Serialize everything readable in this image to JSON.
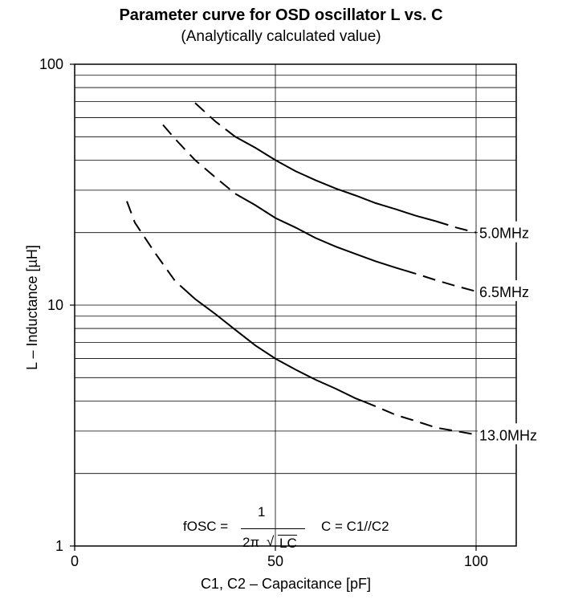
{
  "chart_data": {
    "type": "line",
    "title": "Parameter curve for OSD oscillator L vs. C",
    "subtitle": "(Analytically calculated value)",
    "xlabel": "C1, C2 – Capacitance [pF]",
    "ylabel": "L – Inductance [µH]",
    "xlim": [
      0,
      110
    ],
    "ylim": [
      1,
      100
    ],
    "yscale": "log",
    "grid": true,
    "x_ticks": [
      0,
      50,
      100
    ],
    "x_tick_labels": [
      "0",
      "50",
      "100"
    ],
    "y_ticks": [
      1,
      10,
      100
    ],
    "y_tick_labels": [
      "1",
      "10",
      "100"
    ],
    "series": [
      {
        "name": "5.0MHz",
        "points": [
          [
            30,
            69
          ],
          [
            35,
            58
          ],
          [
            40,
            50
          ],
          [
            45,
            45
          ],
          [
            50,
            40
          ],
          [
            55,
            36
          ],
          [
            60,
            33
          ],
          [
            65,
            30.5
          ],
          [
            70,
            28.5
          ],
          [
            75,
            26.5
          ],
          [
            80,
            25
          ],
          [
            85,
            23.5
          ],
          [
            90,
            22.3
          ],
          [
            95,
            21
          ],
          [
            100,
            20
          ]
        ],
        "solid_range": [
          38,
          90
        ]
      },
      {
        "name": "6.5MHz",
        "points": [
          [
            22,
            56
          ],
          [
            25,
            49
          ],
          [
            30,
            40
          ],
          [
            35,
            34
          ],
          [
            40,
            29
          ],
          [
            45,
            26
          ],
          [
            50,
            23
          ],
          [
            55,
            21
          ],
          [
            60,
            19
          ],
          [
            65,
            17.5
          ],
          [
            70,
            16.3
          ],
          [
            75,
            15.2
          ],
          [
            80,
            14.3
          ],
          [
            85,
            13.5
          ],
          [
            90,
            12.7
          ],
          [
            95,
            12
          ],
          [
            100,
            11.4
          ]
        ],
        "solid_range": [
          40,
          82
        ]
      },
      {
        "name": "13.0MHz",
        "points": [
          [
            13,
            27
          ],
          [
            15,
            22
          ],
          [
            20,
            16.5
          ],
          [
            25,
            12.6
          ],
          [
            30,
            10.6
          ],
          [
            35,
            9.2
          ],
          [
            40,
            7.9
          ],
          [
            45,
            6.8
          ],
          [
            50,
            6
          ],
          [
            55,
            5.4
          ],
          [
            60,
            4.9
          ],
          [
            65,
            4.5
          ],
          [
            70,
            4.1
          ],
          [
            75,
            3.8
          ],
          [
            80,
            3.5
          ],
          [
            85,
            3.3
          ],
          [
            90,
            3.1
          ],
          [
            95,
            3
          ],
          [
            100,
            2.9
          ]
        ],
        "solid_range": [
          27,
          72
        ]
      }
    ],
    "annotations": {
      "formula": {
        "lhs": "fOSC =",
        "numerator": "1",
        "denominator_prefix": "2π",
        "radical": "√",
        "radicand": "LC",
        "rhs": "C = C1//C2"
      }
    }
  }
}
